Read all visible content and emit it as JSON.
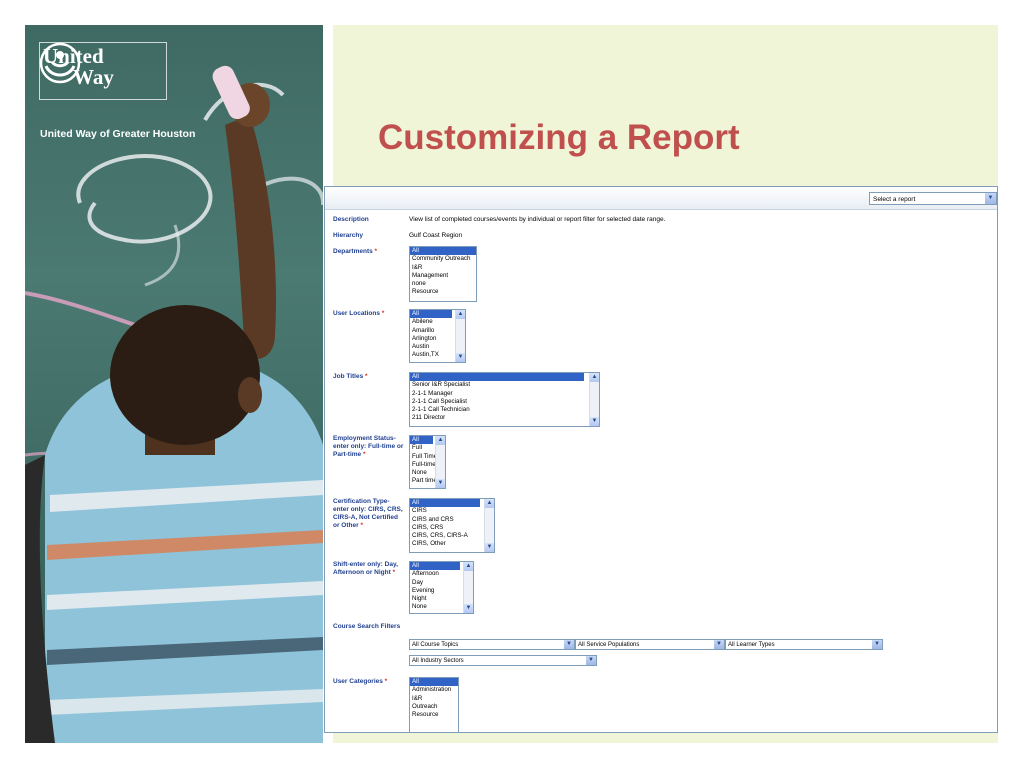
{
  "brand": {
    "logo_word_1": "United",
    "logo_word_2": "Way",
    "subtitle": "United Way of Greater Houston"
  },
  "slide": {
    "title": "Customizing a Report"
  },
  "report": {
    "select_report": "Select a report",
    "description_label": "Description",
    "description_value": "View list of completed courses/events by individual or report filter for selected date range.",
    "hierarchy_label": "Hierarchy",
    "hierarchy_value": "Gulf Coast Region",
    "departments": {
      "label": "Departments",
      "options": [
        "All",
        "Community Outreach",
        "I&R",
        "Management",
        "none",
        "Resource"
      ]
    },
    "user_locations": {
      "label": "User Locations",
      "options": [
        "All",
        "Abilene",
        "Amarillo",
        "Arlington",
        "Austin",
        "Austin,TX"
      ]
    },
    "job_titles": {
      "label": "Job Titles",
      "options": [
        "All",
        "Senior I&R Specialist",
        "2-1-1 Manager",
        "2-1-1 Call Specialist",
        "2-1-1 Call Technician",
        "211 Director"
      ]
    },
    "employment_status": {
      "label": "Employment Status- enter only: Full-time or Part-time",
      "options": [
        "All",
        "Full",
        "Full Time",
        "Full-time",
        "None",
        "Part time"
      ]
    },
    "certification_type": {
      "label": "Certification Type- enter only: CIRS, CRS, CIRS-A, Not Certified or Other",
      "options": [
        "All",
        "CIRS",
        "CIRS and CRS",
        "CIRS, CRS",
        "CIRS, CRS, CIRS-A",
        "CIRS, Other"
      ]
    },
    "shift": {
      "label": "Shift-enter only: Day, Afternoon or Night",
      "options": [
        "All",
        "Afternoon",
        "Day",
        "Evening",
        "Night",
        "None"
      ]
    },
    "course_search_filters": {
      "label": "Course Search Filters",
      "topics": "All Course Topics",
      "service_populations": "All Service Populations",
      "learner_types": "All Learner Types",
      "industry_sectors": "All Industry Sectors"
    },
    "user_categories": {
      "label": "User Categories",
      "options": [
        "All",
        "Administration",
        "I&R",
        "Outreach",
        "Resource"
      ]
    },
    "required_marker": "*"
  }
}
